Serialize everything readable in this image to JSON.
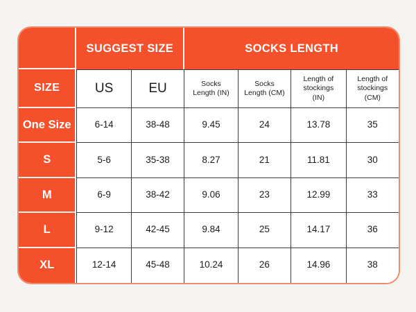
{
  "chart_data": {
    "type": "table",
    "group_headers": [
      {
        "label": "",
        "span": 1
      },
      {
        "label": "SUGGEST SIZE",
        "span": 2
      },
      {
        "label": "SOCKS LENGTH",
        "span": 4
      }
    ],
    "columns": [
      "SIZE",
      "US",
      "EU",
      "Socks Length (IN)",
      "Socks Length (CM)",
      "Length of stockings (IN)",
      "Length of stockings (CM)"
    ],
    "rows": [
      {
        "size": "One Size",
        "values": [
          "6-14",
          "38-48",
          "9.45",
          "24",
          "13.78",
          "35"
        ]
      },
      {
        "size": "S",
        "values": [
          "5-6",
          "35-38",
          "8.27",
          "21",
          "11.81",
          "30"
        ]
      },
      {
        "size": "M",
        "values": [
          "6-9",
          "38-42",
          "9.06",
          "23",
          "12.99",
          "33"
        ]
      },
      {
        "size": "L",
        "values": [
          "9-12",
          "42-45",
          "9.84",
          "25",
          "14.17",
          "36"
        ]
      },
      {
        "size": "XL",
        "values": [
          "12-14",
          "45-48",
          "10.24",
          "26",
          "14.96",
          "38"
        ]
      }
    ],
    "layout": {
      "grid": "on",
      "group_header_row": true,
      "rounded_corners": true
    },
    "colors": {
      "accent": "#f4502b",
      "outer_border": "#ef8b66",
      "grid_line": "#3a3a3a",
      "page_background": "#f4f3f0",
      "cell_background": "#ffffff",
      "header_text": "#ffffff",
      "cell_text": "#1c1c1c"
    }
  }
}
